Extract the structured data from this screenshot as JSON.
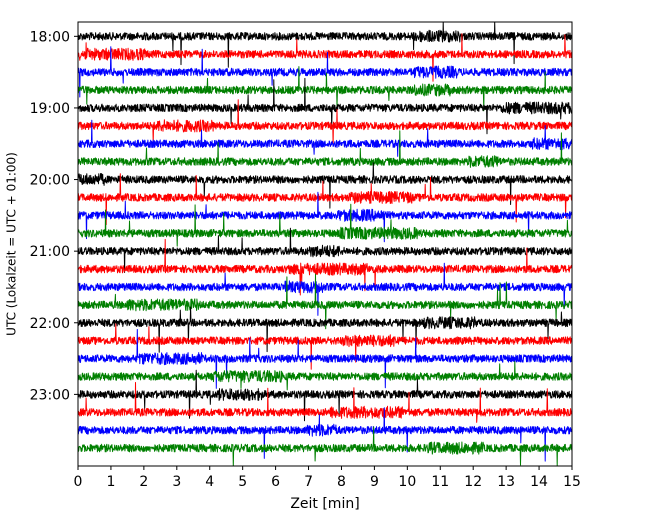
{
  "chart_data": {
    "type": "line",
    "title": "",
    "xlabel": "Zeit  [min]",
    "ylabel": "UTC (Lokalzeit = UTC + 01:00)",
    "xlim": [
      0,
      15
    ],
    "ylim": [
      "17:48",
      "24:00"
    ],
    "x_ticks": [
      "0",
      "1",
      "2",
      "3",
      "4",
      "5",
      "6",
      "7",
      "8",
      "9",
      "10",
      "11",
      "12",
      "13",
      "14",
      "15"
    ],
    "y_ticks": [
      "18:00",
      "19:00",
      "20:00",
      "21:00",
      "22:00",
      "23:00"
    ],
    "trace_interval_min": 15,
    "grid": false,
    "legend": "none",
    "series_colors": [
      "#000000",
      "#ff0000",
      "#0000ff",
      "#008000"
    ],
    "series": [
      {
        "start": "18:00",
        "color": "#000000"
      },
      {
        "start": "18:15",
        "color": "#ff0000"
      },
      {
        "start": "18:30",
        "color": "#0000ff"
      },
      {
        "start": "18:45",
        "color": "#008000"
      },
      {
        "start": "19:00",
        "color": "#000000"
      },
      {
        "start": "19:15",
        "color": "#ff0000"
      },
      {
        "start": "19:30",
        "color": "#0000ff"
      },
      {
        "start": "19:45",
        "color": "#008000"
      },
      {
        "start": "20:00",
        "color": "#000000"
      },
      {
        "start": "20:15",
        "color": "#ff0000"
      },
      {
        "start": "20:30",
        "color": "#0000ff"
      },
      {
        "start": "20:45",
        "color": "#008000"
      },
      {
        "start": "21:00",
        "color": "#000000"
      },
      {
        "start": "21:15",
        "color": "#ff0000"
      },
      {
        "start": "21:30",
        "color": "#0000ff"
      },
      {
        "start": "21:45",
        "color": "#008000"
      },
      {
        "start": "22:00",
        "color": "#000000"
      },
      {
        "start": "22:15",
        "color": "#ff0000"
      },
      {
        "start": "22:30",
        "color": "#0000ff"
      },
      {
        "start": "22:45",
        "color": "#008000"
      },
      {
        "start": "23:00",
        "color": "#000000"
      },
      {
        "start": "23:15",
        "color": "#ff0000"
      },
      {
        "start": "23:30",
        "color": "#0000ff"
      },
      {
        "start": "23:45",
        "color": "#008000"
      }
    ]
  }
}
